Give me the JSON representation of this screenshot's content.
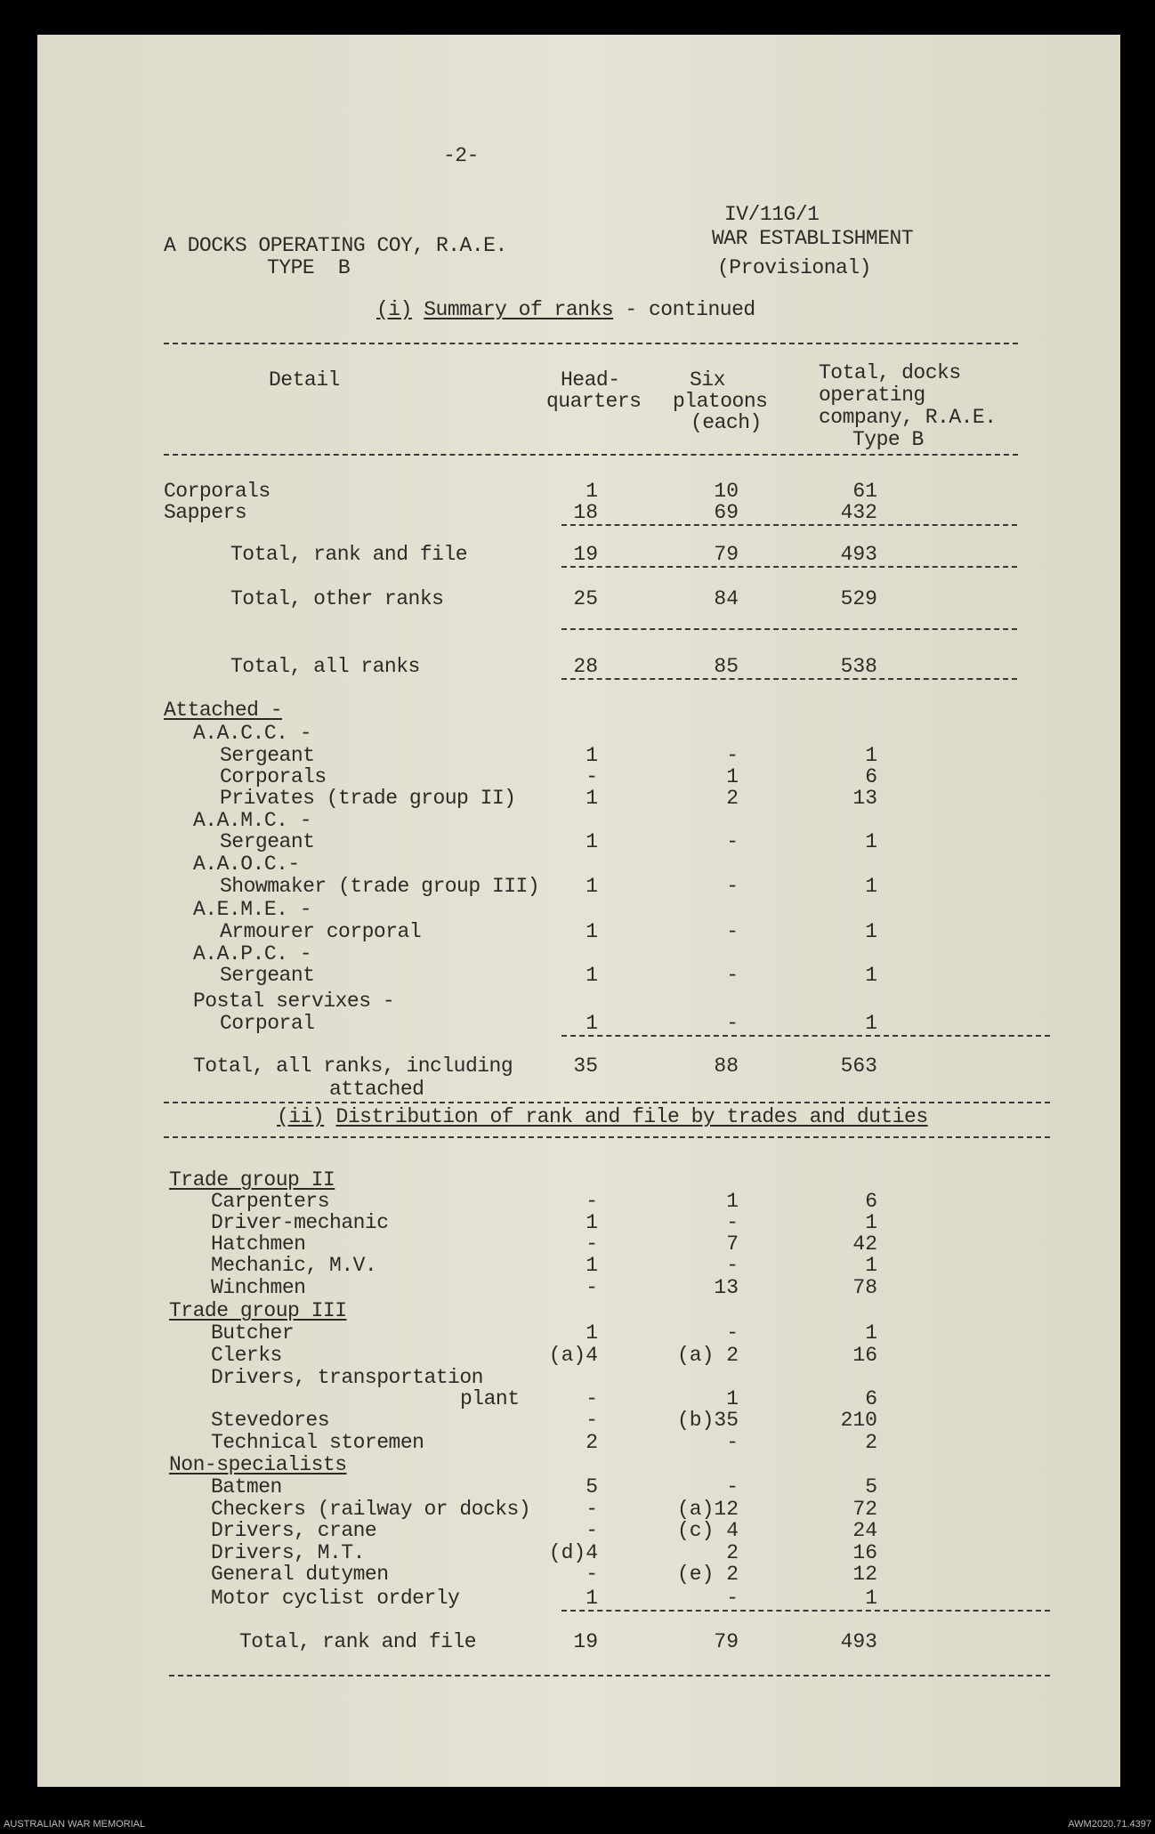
{
  "page_number": "-2-",
  "header": {
    "reference": "IV/11G/1",
    "unit_title": "A DOCKS OPERATING COY, R.A.E.",
    "unit_type": "TYPE  B",
    "establishment": "WAR ESTABLISHMENT",
    "status": "(Provisional)"
  },
  "section1": {
    "number": "(i)",
    "title": "Summary of ranks",
    "suffix": " - continued"
  },
  "columns": {
    "detail": "Detail",
    "hq": [
      "Head-",
      "quarters"
    ],
    "platoons": [
      "Six",
      "platoons",
      "(each)"
    ],
    "total": [
      "Total, docks",
      "operating",
      "company, R.A.E.",
      "Type B"
    ]
  },
  "section2": {
    "number": "(ii)",
    "title": "Distribution of rank and file by trades and duties"
  },
  "rows": [
    {
      "label": "Corporals",
      "hq": "1",
      "pl": "10",
      "tot": "61"
    },
    {
      "label": "Sappers",
      "hq": "18",
      "pl": "69",
      "tot": "432"
    },
    {
      "label": "Total, rank and file",
      "hq": "19",
      "pl": "79",
      "tot": "493"
    },
    {
      "label": "Total, other ranks",
      "hq": "25",
      "pl": "84",
      "tot": "529"
    },
    {
      "label": "Total, all ranks",
      "hq": "28",
      "pl": "85",
      "tot": "538"
    },
    {
      "label": "Attached -",
      "heading": true
    },
    {
      "label": "A.A.C.C. -"
    },
    {
      "label": "Sergeant",
      "hq": "1",
      "pl": "-",
      "tot": "1"
    },
    {
      "label": "Corporals",
      "hq": "-",
      "pl": "1",
      "tot": "6"
    },
    {
      "label": "Privates (trade group II)",
      "hq": "1",
      "pl": "2",
      "tot": "13"
    },
    {
      "label": "A.A.M.C. -"
    },
    {
      "label": "Sergeant",
      "hq": "1",
      "pl": "-",
      "tot": "1"
    },
    {
      "label": "A.A.O.C.-"
    },
    {
      "label": "Showmaker (trade group III)",
      "hq": "1",
      "pl": "-",
      "tot": "1"
    },
    {
      "label": "A.E.M.E. -"
    },
    {
      "label": "Armourer corporal",
      "hq": "1",
      "pl": "-",
      "tot": "1"
    },
    {
      "label": "A.A.P.C. -"
    },
    {
      "label": "Sergeant",
      "hq": "1",
      "pl": "-",
      "tot": "1"
    },
    {
      "label": "Postal servixes -"
    },
    {
      "label": "Corporal",
      "hq": "1",
      "pl": "-",
      "tot": "1"
    },
    {
      "label": "Total, all ranks, including",
      "hq": "35",
      "pl": "88",
      "tot": "563"
    },
    {
      "label": "attached"
    },
    {
      "label": "Trade group II",
      "heading": true
    },
    {
      "label": "Carpenters",
      "hq": "-",
      "pl": "1",
      "tot": "6"
    },
    {
      "label": "Driver-mechanic",
      "hq": "1",
      "pl": "-",
      "tot": "1"
    },
    {
      "label": "Hatchmen",
      "hq": "-",
      "pl": "7",
      "tot": "42"
    },
    {
      "label": "Mechanic, M.V.",
      "hq": "1",
      "pl": "-",
      "tot": "1"
    },
    {
      "label": "Winchmen",
      "hq": "-",
      "pl": "13",
      "tot": "78"
    },
    {
      "label": "Trade group III",
      "heading": true
    },
    {
      "label": "Butcher",
      "hq": "1",
      "pl": "-",
      "tot": "1"
    },
    {
      "label": "Clerks",
      "hq": "(a)4",
      "pl": "(a) 2",
      "tot": "16"
    },
    {
      "label": "Drivers, transportation"
    },
    {
      "label": "plant",
      "hq": "-",
      "pl": "1",
      "tot": "6"
    },
    {
      "label": "Stevedores",
      "hq": "-",
      "pl": "(b)35",
      "tot": "210"
    },
    {
      "label": "Technical storemen",
      "hq": "2",
      "pl": "-",
      "tot": "2"
    },
    {
      "label": "Non-specialists",
      "heading": true
    },
    {
      "label": "Batmen",
      "hq": "5",
      "pl": "-",
      "tot": "5"
    },
    {
      "label": "Checkers (railway or docks)",
      "hq": "-",
      "pl": "(a)12",
      "tot": "72"
    },
    {
      "label": "Drivers, crane",
      "hq": "-",
      "pl": "(c) 4",
      "tot": "24"
    },
    {
      "label": "Drivers, M.T.",
      "hq": "(d)4",
      "pl": "2",
      "tot": "16"
    },
    {
      "label": "General dutymen",
      "hq": "-",
      "pl": "(e) 2",
      "tot": "12"
    },
    {
      "label": "Motor cyclist orderly",
      "hq": "1",
      "pl": "-",
      "tot": "1"
    },
    {
      "label": "Total, rank and file",
      "hq": "19",
      "pl": "79",
      "tot": "493"
    }
  ],
  "footer": {
    "left": "AUSTRALIAN WAR MEMORIAL",
    "right": "AWM2020.71.4397"
  }
}
